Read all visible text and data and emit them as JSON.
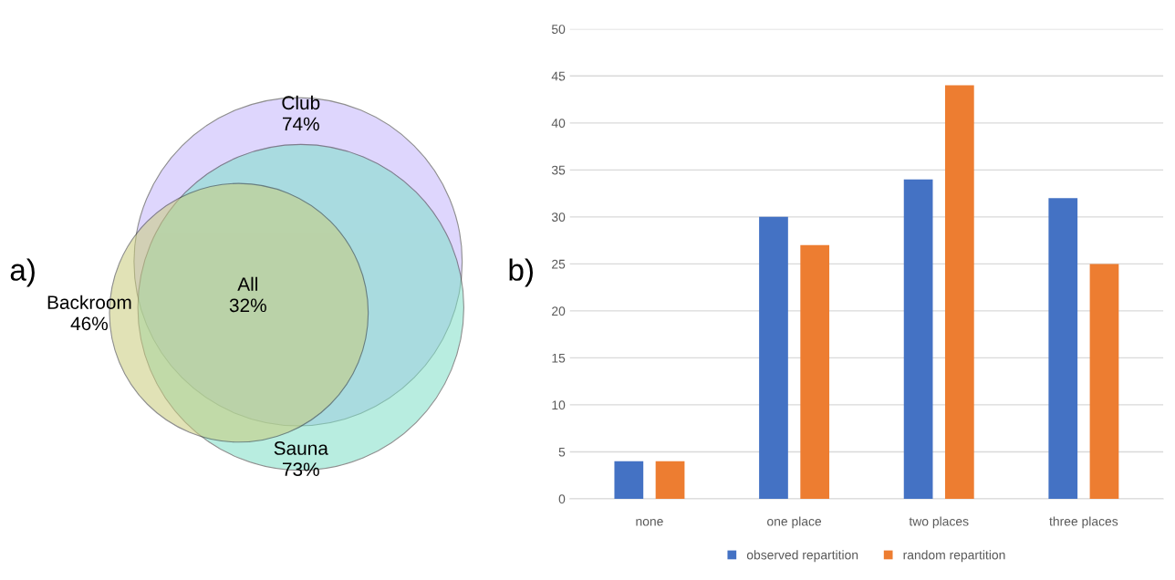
{
  "chart_data": [
    {
      "type": "other",
      "title": "a)",
      "categories": [
        "Club",
        "Sauna",
        "Backroom",
        "All"
      ],
      "values": [
        74,
        73,
        46,
        32
      ],
      "value_labels": [
        "74%",
        "73%",
        "46%",
        "32%"
      ],
      "colors": [
        "#c4b5fb",
        "#7fe0c8",
        "#c9cc7c",
        null
      ]
    },
    {
      "type": "bar",
      "title": "b)",
      "categories": [
        "none",
        "one place",
        "two places",
        "three places"
      ],
      "series": [
        {
          "name": "observed repartition",
          "color": "#4472c4",
          "values": [
            4,
            30,
            34,
            32
          ]
        },
        {
          "name": "random repartition",
          "color": "#ed7d31",
          "values": [
            4,
            27,
            44,
            25
          ]
        }
      ],
      "ylim": [
        0,
        50
      ],
      "yticks": [
        0,
        5,
        10,
        15,
        20,
        25,
        30,
        35,
        40,
        45,
        50
      ],
      "grid": "y",
      "legend": "bottom"
    }
  ]
}
